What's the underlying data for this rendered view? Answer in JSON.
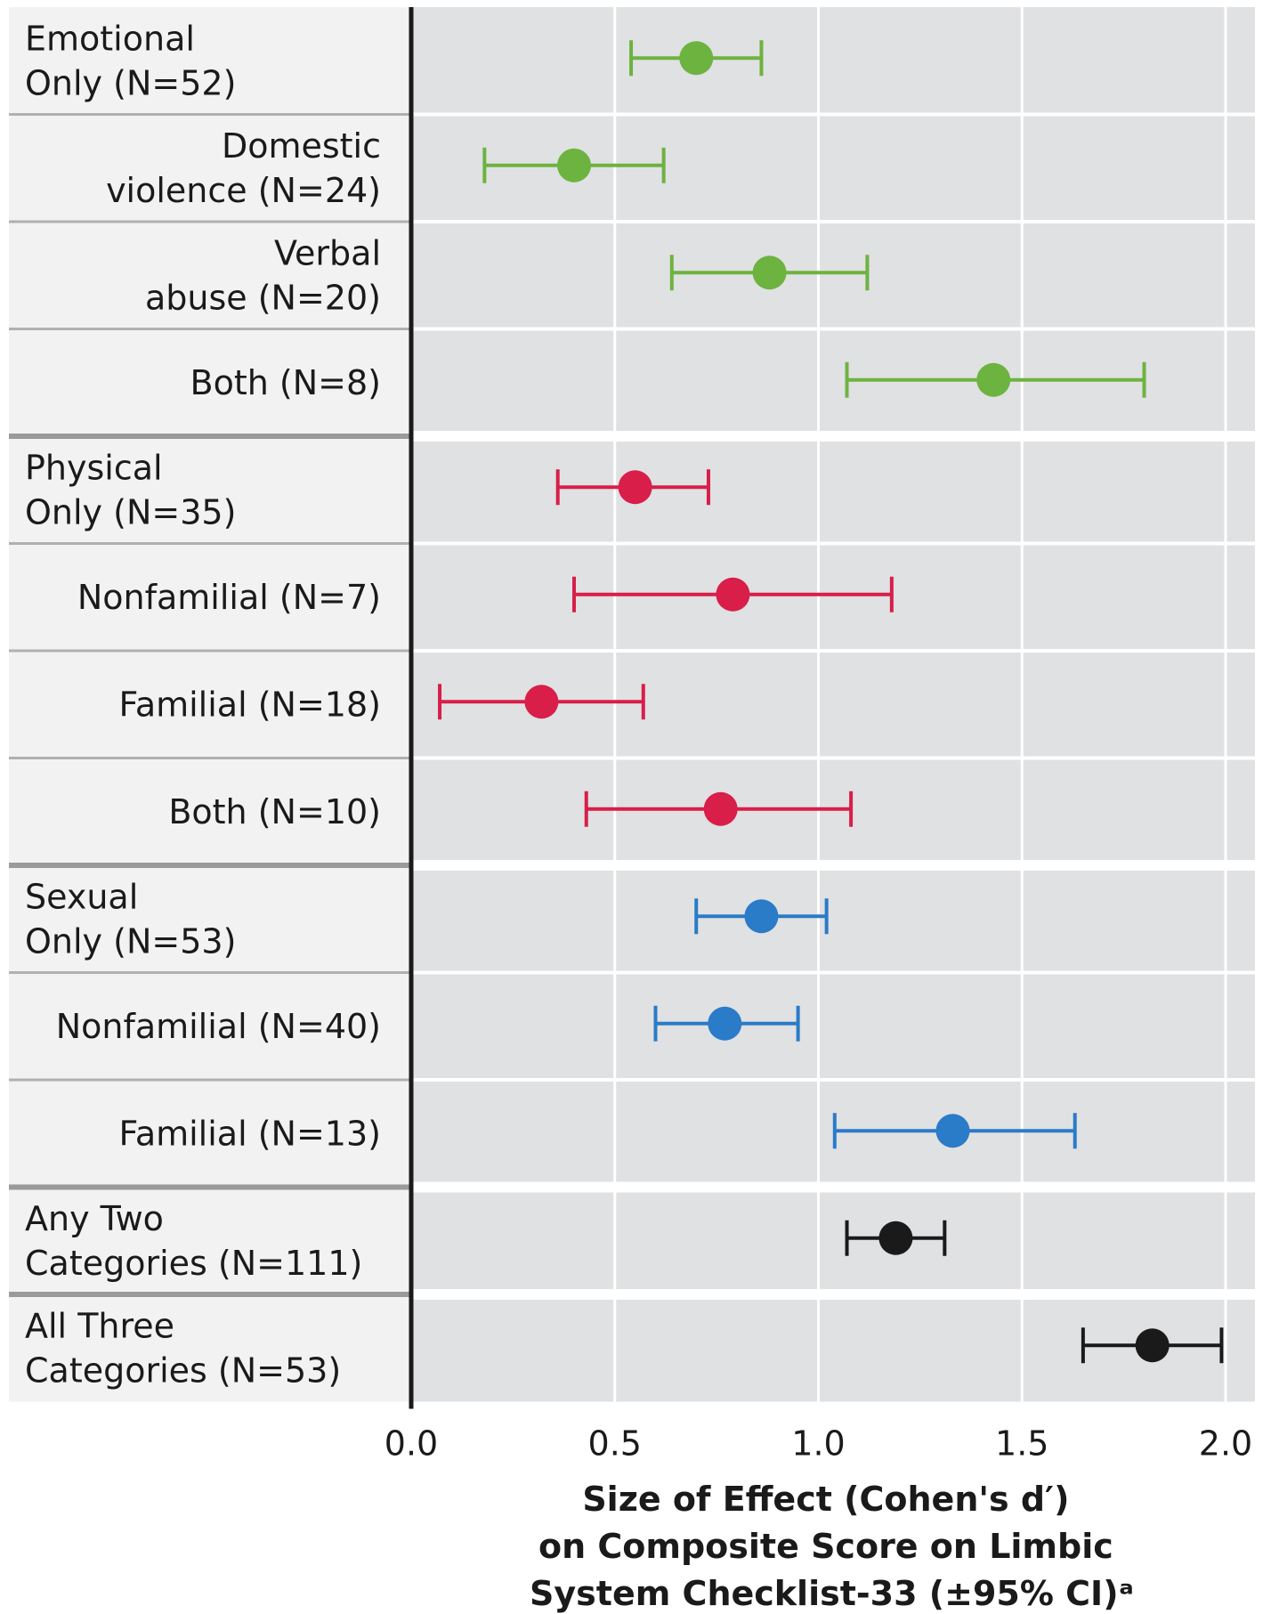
{
  "chart_data": {
    "type": "forest",
    "xlabel_lines": [
      "Size of Effect (Cohen's d′)",
      "on Composite Score on Limbic",
      "System Checklist-33 (±95% CI)ᵃ"
    ],
    "xlim": [
      0.0,
      2.05
    ],
    "xticks": [
      "0.0",
      "0.5",
      "1.0",
      "1.5",
      "2.0"
    ],
    "grid": true,
    "colors": {
      "emotional": "#6db33f",
      "physical": "#d81e49",
      "sexual": "#2a7bc8",
      "combined": "#1a1a1a"
    },
    "rows": [
      {
        "label": [
          "Emotional",
          "Only (N=52)"
        ],
        "align": "left",
        "group": "emotional",
        "effect": 0.7,
        "ci": [
          0.54,
          0.86
        ],
        "separator": "thin"
      },
      {
        "label": [
          "Domestic",
          "violence (N=24)"
        ],
        "align": "right",
        "group": "emotional",
        "effect": 0.4,
        "ci": [
          0.18,
          0.62
        ],
        "separator": "thin"
      },
      {
        "label": [
          "Verbal",
          "abuse (N=20)"
        ],
        "align": "right",
        "group": "emotional",
        "effect": 0.88,
        "ci": [
          0.64,
          1.12
        ],
        "separator": "thin"
      },
      {
        "label": [
          "Both (N=8)"
        ],
        "align": "right",
        "group": "emotional",
        "effect": 1.43,
        "ci": [
          1.07,
          1.8
        ],
        "separator": "thick"
      },
      {
        "label": [
          "Physical",
          "Only (N=35)"
        ],
        "align": "left",
        "group": "physical",
        "effect": 0.55,
        "ci": [
          0.36,
          0.73
        ],
        "separator": "thin"
      },
      {
        "label": [
          "Nonfamilial (N=7)"
        ],
        "align": "right",
        "group": "physical",
        "effect": 0.79,
        "ci": [
          0.4,
          1.18
        ],
        "separator": "thin"
      },
      {
        "label": [
          "Familial (N=18)"
        ],
        "align": "right",
        "group": "physical",
        "effect": 0.32,
        "ci": [
          0.07,
          0.57
        ],
        "separator": "thin"
      },
      {
        "label": [
          "Both (N=10)"
        ],
        "align": "right",
        "group": "physical",
        "effect": 0.76,
        "ci": [
          0.43,
          1.08
        ],
        "separator": "thick"
      },
      {
        "label": [
          "Sexual",
          "Only (N=53)"
        ],
        "align": "left",
        "group": "sexual",
        "effect": 0.86,
        "ci": [
          0.7,
          1.02
        ],
        "separator": "thin"
      },
      {
        "label": [
          "Nonfamilial (N=40)"
        ],
        "align": "right",
        "group": "sexual",
        "effect": 0.77,
        "ci": [
          0.6,
          0.95
        ],
        "separator": "thin"
      },
      {
        "label": [
          "Familial (N=13)"
        ],
        "align": "right",
        "group": "sexual",
        "effect": 1.33,
        "ci": [
          1.04,
          1.63
        ],
        "separator": "thick"
      },
      {
        "label": [
          "Any Two",
          "Categories (N=111)"
        ],
        "align": "left",
        "group": "combined",
        "effect": 1.19,
        "ci": [
          1.07,
          1.31
        ],
        "separator": "thick"
      },
      {
        "label": [
          "All Three",
          "Categories (N=53)"
        ],
        "align": "left",
        "group": "combined",
        "effect": 1.82,
        "ci": [
          1.65,
          1.99
        ],
        "separator": "none"
      }
    ]
  }
}
